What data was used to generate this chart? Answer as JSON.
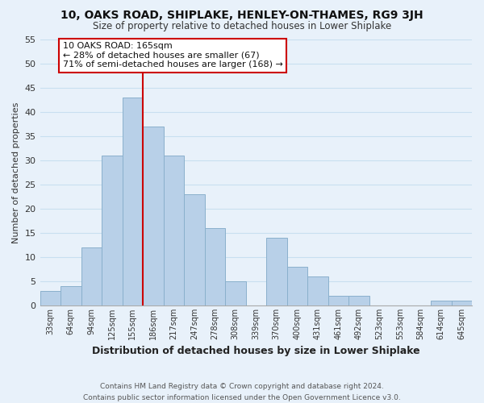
{
  "title": "10, OAKS ROAD, SHIPLAKE, HENLEY-ON-THAMES, RG9 3JH",
  "subtitle": "Size of property relative to detached houses in Lower Shiplake",
  "xlabel": "Distribution of detached houses by size in Lower Shiplake",
  "ylabel": "Number of detached properties",
  "footer_line1": "Contains HM Land Registry data © Crown copyright and database right 2024.",
  "footer_line2": "Contains public sector information licensed under the Open Government Licence v3.0.",
  "bar_labels": [
    "33sqm",
    "64sqm",
    "94sqm",
    "125sqm",
    "155sqm",
    "186sqm",
    "217sqm",
    "247sqm",
    "278sqm",
    "308sqm",
    "339sqm",
    "370sqm",
    "400sqm",
    "431sqm",
    "461sqm",
    "492sqm",
    "523sqm",
    "553sqm",
    "584sqm",
    "614sqm",
    "645sqm"
  ],
  "bar_values": [
    3,
    4,
    12,
    31,
    43,
    37,
    31,
    23,
    16,
    5,
    0,
    14,
    8,
    6,
    2,
    2,
    0,
    0,
    0,
    1,
    1
  ],
  "bar_color": "#b8d0e8",
  "bar_edge_color": "#8ab0cc",
  "grid_color": "#c8dff0",
  "background_color": "#e8f1fa",
  "vline_color": "#cc0000",
  "annotation_text": "10 OAKS ROAD: 165sqm\n← 28% of detached houses are smaller (67)\n71% of semi-detached houses are larger (168) →",
  "annotation_box_edgecolor": "#cc0000",
  "annotation_box_facecolor": "#ffffff",
  "ylim": [
    0,
    55
  ],
  "yticks": [
    0,
    5,
    10,
    15,
    20,
    25,
    30,
    35,
    40,
    45,
    50,
    55
  ]
}
